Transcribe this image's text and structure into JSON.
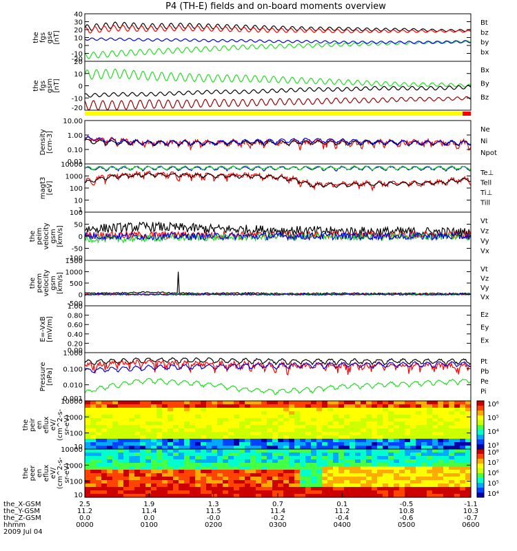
{
  "title": "P4 (TH-E) fields and on-board moments overview",
  "colors": {
    "black": "#000000",
    "red": "#ff0000",
    "blue": "#0000dd",
    "green": "#22dd22",
    "darkred": "#990000",
    "yellow": "#ffff00"
  },
  "chart_data": [
    {
      "type": "line",
      "id": "fgs_gse",
      "ylabel": [
        "the",
        "fgs",
        "gse",
        "[nT]"
      ],
      "yticks": [
        "40",
        "30",
        "20",
        "10",
        "0",
        "-10",
        "-20"
      ],
      "ylim": [
        -20,
        40
      ],
      "series": [
        {
          "name": "Bt",
          "color": "black",
          "values": [
            22,
            26,
            24,
            25,
            24,
            23,
            22,
            21,
            21,
            20,
            20,
            19,
            19
          ]
        },
        {
          "name": "bz",
          "color": "red",
          "values": [
            19,
            22,
            21,
            22,
            21,
            20,
            19,
            19,
            18,
            18,
            18,
            18,
            18
          ]
        },
        {
          "name": "by",
          "color": "green",
          "values": [
            -13,
            -10,
            -8,
            -6,
            -4,
            -2,
            -1,
            0,
            1,
            2,
            3,
            4,
            5
          ]
        },
        {
          "name": "bx",
          "color": "blue",
          "values": [
            8,
            8,
            7,
            7,
            6,
            6,
            5,
            5,
            4,
            4,
            4,
            4,
            5
          ]
        }
      ]
    },
    {
      "type": "line",
      "id": "fgs_gsm",
      "ylabel": [
        "the",
        "fgs",
        "gsm",
        "[nT]"
      ],
      "yticks": [
        "20",
        "10",
        "0",
        "-10",
        "-20"
      ],
      "ylim": [
        -20,
        20
      ],
      "series": [
        {
          "name": "Bx",
          "color": "green",
          "values": [
            9,
            10,
            8,
            7,
            6,
            6,
            5,
            4,
            3,
            2,
            1,
            1,
            0
          ]
        },
        {
          "name": "By",
          "color": "black",
          "values": [
            -8,
            -7,
            -7,
            -6,
            -5,
            -5,
            -4,
            -3,
            -3,
            -2,
            -2,
            -2,
            -1
          ]
        },
        {
          "name": "Bz",
          "color": "darkred",
          "values": [
            -16,
            -16,
            -15,
            -15,
            -14,
            -14,
            -13,
            -13,
            -12,
            -12,
            -11,
            -11,
            -10
          ]
        }
      ]
    },
    {
      "type": "line",
      "id": "density",
      "ylabel": [
        "Density",
        "[cm-3]"
      ],
      "yticks": [
        "10.00",
        "1.00",
        "0.10",
        "0.01"
      ],
      "ylim": [
        0.01,
        10
      ],
      "log": true,
      "series": [
        {
          "name": "Ne",
          "color": "red",
          "values": [
            0.5,
            0.4,
            0.3,
            0.3,
            0.3,
            0.3,
            0.3,
            0.3,
            0.3,
            0.3,
            0.3,
            0.3,
            0.3
          ]
        },
        {
          "name": "Ni",
          "color": "black",
          "values": [
            0.4,
            0.3,
            0.3,
            0.3,
            0.3,
            0.3,
            0.3,
            0.3,
            0.3,
            0.3,
            0.3,
            0.3,
            0.3
          ]
        },
        {
          "name": "Npot",
          "color": "blue",
          "values": [
            0.6,
            0.4,
            0.3,
            0.3,
            0.3,
            0.35,
            0.4,
            0.45,
            0.4,
            0.35,
            0.3,
            0.3,
            0.3
          ]
        }
      ]
    },
    {
      "type": "line",
      "id": "temperature",
      "ylabel": [
        "magt3",
        "[eV]"
      ],
      "yticks": [
        "10000",
        "1000",
        "100",
        "10",
        "1"
      ],
      "ylim": [
        1,
        10000
      ],
      "log": true,
      "series": [
        {
          "name": "Te⊥",
          "color": "red",
          "values": [
            300,
            1200,
            1500,
            1300,
            1200,
            1100,
            900,
            200,
            200,
            250,
            250,
            300,
            600
          ]
        },
        {
          "name": "Tell",
          "color": "black",
          "values": [
            250,
            1000,
            1300,
            1200,
            1100,
            1000,
            800,
            180,
            190,
            220,
            240,
            280,
            550
          ]
        },
        {
          "name": "Ti⊥",
          "color": "blue",
          "values": [
            4000,
            4500,
            4500,
            4500,
            4500,
            4500,
            4500,
            4500,
            4500,
            4500,
            4500,
            4500,
            4500
          ]
        },
        {
          "name": "Till",
          "color": "green",
          "values": [
            4500,
            5000,
            5000,
            5000,
            5000,
            5000,
            5000,
            5000,
            5000,
            5000,
            5000,
            5000,
            5000
          ]
        }
      ]
    },
    {
      "type": "line",
      "id": "peim_velocity",
      "ylabel": [
        "the",
        "peim",
        "velocity",
        "gsm",
        "[km/s]"
      ],
      "yticks": [
        "100",
        "50",
        "0",
        "-50",
        "-100"
      ],
      "ylim": [
        -100,
        100
      ],
      "series": [
        {
          "name": "Vt",
          "color": "black",
          "values": [
            30,
            35,
            40,
            35,
            30,
            28,
            25,
            22,
            20,
            20,
            18,
            18,
            15
          ]
        },
        {
          "name": "Vz",
          "color": "red",
          "values": [
            5,
            5,
            5,
            5,
            5,
            5,
            5,
            5,
            5,
            5,
            5,
            5,
            5
          ]
        },
        {
          "name": "Vy",
          "color": "green",
          "values": [
            -10,
            -12,
            -8,
            -5,
            -5,
            -3,
            -3,
            -2,
            -2,
            -2,
            -1,
            -1,
            0
          ]
        },
        {
          "name": "Vx",
          "color": "blue",
          "values": [
            0,
            0,
            0,
            0,
            0,
            0,
            0,
            0,
            0,
            0,
            0,
            0,
            0
          ]
        }
      ]
    },
    {
      "type": "line",
      "id": "peem_velocity",
      "ylabel": [
        "the",
        "peem",
        "velocity",
        "gsm",
        "[km/s]"
      ],
      "yticks": [
        "1500",
        "1000",
        "500",
        "0",
        "-500"
      ],
      "ylim": [
        -500,
        1500
      ],
      "series": [
        {
          "name": "Vt",
          "color": "black",
          "values": [
            50,
            60,
            100,
            60,
            50,
            60,
            40,
            40,
            50,
            40,
            40,
            40,
            30
          ]
        },
        {
          "name": "Vz",
          "color": "red",
          "values": [
            0,
            0,
            0,
            0,
            0,
            0,
            0,
            0,
            0,
            0,
            0,
            0,
            0
          ]
        },
        {
          "name": "Vy",
          "color": "green",
          "values": [
            0,
            0,
            0,
            0,
            0,
            0,
            0,
            0,
            0,
            0,
            0,
            0,
            0
          ]
        },
        {
          "name": "Vx",
          "color": "blue",
          "values": [
            0,
            0,
            0,
            0,
            0,
            0,
            0,
            0,
            0,
            0,
            0,
            0,
            0
          ]
        }
      ]
    },
    {
      "type": "line",
      "id": "efield",
      "ylabel": [
        "E=-VxB",
        "[mV/m]"
      ],
      "yticks": [
        "1.00",
        "0.80",
        "0.60",
        "0.40",
        "0.20",
        "0.00"
      ],
      "ylim": [
        0,
        1
      ],
      "series": [
        {
          "name": "Ez",
          "color": "red",
          "values": []
        },
        {
          "name": "Ey",
          "color": "green",
          "values": []
        },
        {
          "name": "Ex",
          "color": "blue",
          "values": []
        }
      ]
    },
    {
      "type": "line",
      "id": "pressure",
      "ylabel": [
        "Pressure",
        "[nPa]"
      ],
      "yticks": [
        "1.000",
        "0.100",
        "0.010",
        "0.001"
      ],
      "ylim": [
        0.001,
        1
      ],
      "log": true,
      "series": [
        {
          "name": "Pt",
          "color": "black",
          "values": [
            0.25,
            0.3,
            0.35,
            0.35,
            0.33,
            0.32,
            0.3,
            0.3,
            0.3,
            0.3,
            0.3,
            0.3,
            0.3
          ]
        },
        {
          "name": "Pb",
          "color": "red",
          "values": [
            0.15,
            0.2,
            0.22,
            0.2,
            0.18,
            0.17,
            0.16,
            0.15,
            0.15,
            0.15,
            0.15,
            0.15,
            0.14
          ]
        },
        {
          "name": "Pe",
          "color": "green",
          "values": [
            0.003,
            0.01,
            0.02,
            0.015,
            0.01,
            0.005,
            0.004,
            0.005,
            0.008,
            0.01,
            0.012,
            0.015,
            0.018
          ]
        },
        {
          "name": "Pi",
          "color": "blue",
          "values": [
            0.08,
            0.1,
            0.12,
            0.13,
            0.14,
            0.15,
            0.16,
            0.17,
            0.18,
            0.18,
            0.19,
            0.2,
            0.2
          ]
        }
      ]
    },
    {
      "type": "heatmap",
      "id": "peir",
      "ylabel": [
        "the",
        "peir",
        "en",
        "eflux",
        "eV/",
        "(cm^2-s-",
        "sr-eV)"
      ],
      "yticks": [
        "10000",
        "1000",
        "100",
        "10"
      ],
      "colorbar_ticks": [
        "10⁶",
        "10⁵",
        "10⁴",
        "10³"
      ]
    },
    {
      "type": "heatmap",
      "id": "peer",
      "ylabel": [
        "the",
        "peer",
        "en",
        "eflux",
        "eV/",
        "(cm^2-s-",
        "sr-eV)"
      ],
      "yticks": [
        "10000",
        "1000",
        "100",
        "10"
      ],
      "colorbar_ticks": [
        "10⁸",
        "10⁷",
        "10⁶",
        "10⁵",
        "10⁴"
      ]
    }
  ],
  "xaxis": {
    "row_labels": [
      "the_X-GSM",
      "the_Y-GSM",
      "the_Z-GSM",
      "hhmm",
      "2009 Jul 04"
    ],
    "columns": [
      [
        "2.5",
        "11.2",
        "0.0",
        "0000"
      ],
      [
        "1.9",
        "11.4",
        "0.0",
        "0100"
      ],
      [
        "1.3",
        "11.5",
        "-0.0",
        "0200"
      ],
      [
        "0.7",
        "11.4",
        "-0.2",
        "0300"
      ],
      [
        "0.1",
        "11.2",
        "-0.4",
        "0400"
      ],
      [
        "-0.5",
        "10.8",
        "-0.6",
        "0500"
      ],
      [
        "-1.1",
        "10.3",
        "-0.7",
        "0600"
      ]
    ]
  }
}
